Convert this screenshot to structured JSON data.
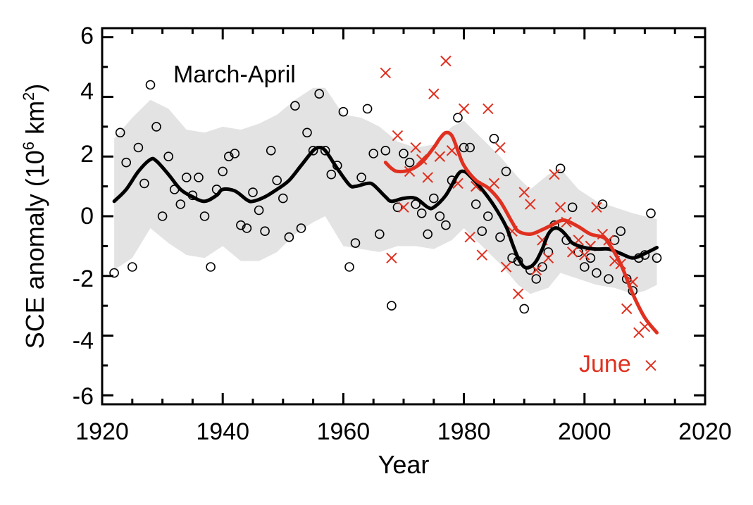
{
  "chart_data": {
    "type": "scatter",
    "xlabel": "Year",
    "ylabel": "SCE anomaly (10",
    "ylabel_sup": "6",
    "ylabel_unit": " km",
    "ylabel_sup2": "2",
    "ylabel_close": ")",
    "xlim": [
      1920,
      2020
    ],
    "ylim": [
      -6.3,
      6.3
    ],
    "x_ticks": [
      "1920",
      "1940",
      "1960",
      "1980",
      "2000",
      "2020"
    ],
    "y_ticks": [
      "6",
      "4",
      "2",
      "0",
      "-2",
      "-4",
      "-6"
    ],
    "colors": {
      "march_april": "#000000",
      "june": "#e03020",
      "band": "#e3e3e3"
    },
    "series": [
      {
        "name": "March-April",
        "marker": "circle",
        "points": [
          [
            1922,
            -1.9
          ],
          [
            1923,
            2.8
          ],
          [
            1924,
            1.8
          ],
          [
            1925,
            -1.7
          ],
          [
            1926,
            2.3
          ],
          [
            1927,
            1.1
          ],
          [
            1928,
            4.4
          ],
          [
            1929,
            3.0
          ],
          [
            1930,
            0.0
          ],
          [
            1931,
            2.0
          ],
          [
            1932,
            0.9
          ],
          [
            1933,
            0.4
          ],
          [
            1934,
            1.3
          ],
          [
            1935,
            0.7
          ],
          [
            1936,
            1.3
          ],
          [
            1937,
            0.0
          ],
          [
            1938,
            -1.7
          ],
          [
            1939,
            0.9
          ],
          [
            1940,
            1.5
          ],
          [
            1941,
            2.0
          ],
          [
            1942,
            2.1
          ],
          [
            1943,
            -0.3
          ],
          [
            1944,
            -0.4
          ],
          [
            1945,
            0.8
          ],
          [
            1946,
            0.2
          ],
          [
            1947,
            -0.5
          ],
          [
            1948,
            2.2
          ],
          [
            1949,
            1.2
          ],
          [
            1950,
            0.6
          ],
          [
            1951,
            -0.7
          ],
          [
            1952,
            3.7
          ],
          [
            1953,
            -0.4
          ],
          [
            1954,
            2.8
          ],
          [
            1955,
            2.2
          ],
          [
            1956,
            4.1
          ],
          [
            1957,
            2.2
          ],
          [
            1958,
            1.4
          ],
          [
            1959,
            1.7
          ],
          [
            1960,
            3.5
          ],
          [
            1961,
            -1.7
          ],
          [
            1962,
            -0.9
          ],
          [
            1963,
            1.3
          ],
          [
            1964,
            3.6
          ],
          [
            1965,
            2.1
          ],
          [
            1966,
            -0.6
          ],
          [
            1967,
            2.2
          ],
          [
            1968,
            -3.0
          ],
          [
            1969,
            0.3
          ],
          [
            1970,
            2.1
          ],
          [
            1971,
            1.8
          ],
          [
            1972,
            0.4
          ],
          [
            1973,
            0.1
          ],
          [
            1974,
            -0.6
          ],
          [
            1975,
            0.6
          ],
          [
            1976,
            0.0
          ],
          [
            1977,
            -0.3
          ],
          [
            1978,
            1.2
          ],
          [
            1979,
            3.3
          ],
          [
            1980,
            2.3
          ],
          [
            1981,
            2.3
          ],
          [
            1982,
            0.4
          ],
          [
            1983,
            -0.5
          ],
          [
            1984,
            0.0
          ],
          [
            1985,
            2.6
          ],
          [
            1986,
            -0.7
          ],
          [
            1987,
            1.5
          ],
          [
            1988,
            -1.4
          ],
          [
            1989,
            -1.5
          ],
          [
            1990,
            -3.1
          ],
          [
            1991,
            -1.8
          ],
          [
            1992,
            -2.1
          ],
          [
            1993,
            -1.7
          ],
          [
            1994,
            -1.2
          ],
          [
            1995,
            -0.3
          ],
          [
            1996,
            1.6
          ],
          [
            1997,
            -0.8
          ],
          [
            1998,
            0.3
          ],
          [
            1999,
            -1.2
          ],
          [
            2000,
            -1.7
          ],
          [
            2001,
            -1.4
          ],
          [
            2002,
            -1.9
          ],
          [
            2003,
            0.4
          ],
          [
            2004,
            -2.1
          ],
          [
            2005,
            -0.8
          ],
          [
            2006,
            -0.5
          ],
          [
            2007,
            -2.1
          ],
          [
            2008,
            -2.5
          ],
          [
            2009,
            -1.4
          ],
          [
            2010,
            -1.3
          ],
          [
            2011,
            0.1
          ],
          [
            2012,
            -1.4
          ]
        ],
        "smooth": [
          [
            1922,
            0.5
          ],
          [
            1924,
            0.9
          ],
          [
            1926,
            1.5
          ],
          [
            1928,
            1.9
          ],
          [
            1929,
            1.85
          ],
          [
            1931,
            1.4
          ],
          [
            1933,
            0.9
          ],
          [
            1935,
            0.65
          ],
          [
            1937,
            0.5
          ],
          [
            1939,
            0.7
          ],
          [
            1940,
            0.9
          ],
          [
            1942,
            0.85
          ],
          [
            1944,
            0.55
          ],
          [
            1945,
            0.5
          ],
          [
            1947,
            0.65
          ],
          [
            1949,
            0.9
          ],
          [
            1951,
            1.2
          ],
          [
            1953,
            1.7
          ],
          [
            1955,
            2.2
          ],
          [
            1956,
            2.3
          ],
          [
            1957,
            2.2
          ],
          [
            1959,
            1.6
          ],
          [
            1961,
            1.05
          ],
          [
            1962,
            1.0
          ],
          [
            1964,
            1.1
          ],
          [
            1965,
            1.05
          ],
          [
            1967,
            0.65
          ],
          [
            1968,
            0.5
          ],
          [
            1970,
            0.6
          ],
          [
            1972,
            0.6
          ],
          [
            1974,
            0.3
          ],
          [
            1975,
            0.3
          ],
          [
            1977,
            0.7
          ],
          [
            1979,
            1.4
          ],
          [
            1980,
            1.5
          ],
          [
            1981,
            1.35
          ],
          [
            1983,
            0.9
          ],
          [
            1985,
            0.35
          ],
          [
            1987,
            -0.35
          ],
          [
            1988,
            -0.9
          ],
          [
            1989,
            -1.4
          ],
          [
            1990,
            -1.7
          ],
          [
            1991,
            -1.7
          ],
          [
            1992,
            -1.5
          ],
          [
            1993,
            -1.1
          ],
          [
            1994,
            -0.6
          ],
          [
            1995,
            -0.4
          ],
          [
            1996,
            -0.45
          ],
          [
            1997,
            -0.65
          ],
          [
            1998,
            -0.9
          ],
          [
            2000,
            -1.05
          ],
          [
            2002,
            -1.1
          ],
          [
            2004,
            -1.1
          ],
          [
            2006,
            -1.25
          ],
          [
            2008,
            -1.4
          ],
          [
            2010,
            -1.25
          ],
          [
            2012,
            -1.05
          ]
        ],
        "band": [
          [
            1922,
            -1.8,
            2.6
          ],
          [
            1925,
            -1.4,
            3.3
          ],
          [
            1928,
            -0.4,
            3.9
          ],
          [
            1931,
            -0.9,
            3.6
          ],
          [
            1934,
            -1.3,
            2.9
          ],
          [
            1937,
            -1.4,
            2.8
          ],
          [
            1940,
            -1.0,
            3.0
          ],
          [
            1943,
            -1.5,
            2.9
          ],
          [
            1946,
            -1.5,
            3.1
          ],
          [
            1949,
            -1.2,
            3.4
          ],
          [
            1952,
            -0.6,
            3.9
          ],
          [
            1955,
            -0.2,
            4.3
          ],
          [
            1957,
            0.0,
            4.3
          ],
          [
            1960,
            -1.0,
            3.4
          ],
          [
            1963,
            -1.1,
            3.3
          ],
          [
            1966,
            -1.2,
            3.0
          ],
          [
            1969,
            -1.0,
            2.5
          ],
          [
            1972,
            -1.0,
            2.3
          ],
          [
            1975,
            -1.1,
            2.4
          ],
          [
            1978,
            -0.8,
            3.0
          ],
          [
            1980,
            -0.4,
            3.2
          ],
          [
            1983,
            -1.0,
            2.6
          ],
          [
            1986,
            -1.6,
            2.0
          ],
          [
            1989,
            -2.3,
            1.3
          ],
          [
            1991,
            -2.6,
            0.9
          ],
          [
            1994,
            -2.4,
            1.4
          ],
          [
            1996,
            -1.9,
            1.6
          ],
          [
            1999,
            -2.1,
            0.9
          ],
          [
            2002,
            -2.3,
            0.5
          ],
          [
            2005,
            -2.4,
            0.3
          ],
          [
            2008,
            -2.6,
            0.1
          ],
          [
            2010,
            -2.5,
            0.0
          ],
          [
            2012,
            -2.3,
            -0.1
          ]
        ]
      },
      {
        "name": "June",
        "marker": "x",
        "points": [
          [
            1967,
            4.8
          ],
          [
            1968,
            -1.4
          ],
          [
            1969,
            2.7
          ],
          [
            1970,
            0.3
          ],
          [
            1971,
            1.5
          ],
          [
            1972,
            2.3
          ],
          [
            1973,
            1.9
          ],
          [
            1974,
            1.3
          ],
          [
            1975,
            4.1
          ],
          [
            1976,
            2.0
          ],
          [
            1977,
            5.2
          ],
          [
            1978,
            2.2
          ],
          [
            1979,
            1.1
          ],
          [
            1980,
            3.6
          ],
          [
            1981,
            -0.7
          ],
          [
            1982,
            1.0
          ],
          [
            1983,
            -1.3
          ],
          [
            1984,
            3.6
          ],
          [
            1985,
            1.1
          ],
          [
            1986,
            2.3
          ],
          [
            1987,
            -1.7
          ],
          [
            1988,
            -0.5
          ],
          [
            1989,
            -2.6
          ],
          [
            1990,
            0.8
          ],
          [
            1991,
            0.4
          ],
          [
            1992,
            -1.8
          ],
          [
            1993,
            -0.8
          ],
          [
            1994,
            -1.4
          ],
          [
            1995,
            1.4
          ],
          [
            1996,
            0.3
          ],
          [
            1997,
            -0.2
          ],
          [
            1998,
            -1.2
          ],
          [
            1999,
            -0.8
          ],
          [
            2000,
            -1.3
          ],
          [
            2001,
            -1.0
          ],
          [
            2002,
            0.3
          ],
          [
            2003,
            -0.6
          ],
          [
            2004,
            -0.8
          ],
          [
            2005,
            -1.5
          ],
          [
            2006,
            -1.6
          ],
          [
            2007,
            -3.1
          ],
          [
            2008,
            -2.2
          ],
          [
            2009,
            -3.9
          ],
          [
            2010,
            -3.7
          ],
          [
            2011,
            -5.0
          ]
        ],
        "smooth": [
          [
            1967,
            1.8
          ],
          [
            1968,
            1.6
          ],
          [
            1969,
            1.5
          ],
          [
            1971,
            1.55
          ],
          [
            1973,
            1.8
          ],
          [
            1975,
            2.3
          ],
          [
            1976,
            2.6
          ],
          [
            1977,
            2.8
          ],
          [
            1978,
            2.7
          ],
          [
            1979,
            2.2
          ],
          [
            1980,
            1.7
          ],
          [
            1982,
            1.2
          ],
          [
            1984,
            0.95
          ],
          [
            1986,
            0.5
          ],
          [
            1988,
            -0.2
          ],
          [
            1989,
            -0.5
          ],
          [
            1991,
            -0.6
          ],
          [
            1993,
            -0.45
          ],
          [
            1995,
            -0.25
          ],
          [
            1996,
            -0.15
          ],
          [
            1997,
            -0.15
          ],
          [
            1999,
            -0.35
          ],
          [
            2001,
            -0.6
          ],
          [
            2003,
            -0.7
          ],
          [
            2004,
            -0.9
          ],
          [
            2006,
            -1.6
          ],
          [
            2008,
            -2.6
          ],
          [
            2010,
            -3.4
          ],
          [
            2012,
            -3.9
          ]
        ]
      }
    ],
    "annotations": [
      {
        "text": "March-April",
        "series": "March-April"
      },
      {
        "text": "June",
        "series": "June"
      }
    ]
  }
}
